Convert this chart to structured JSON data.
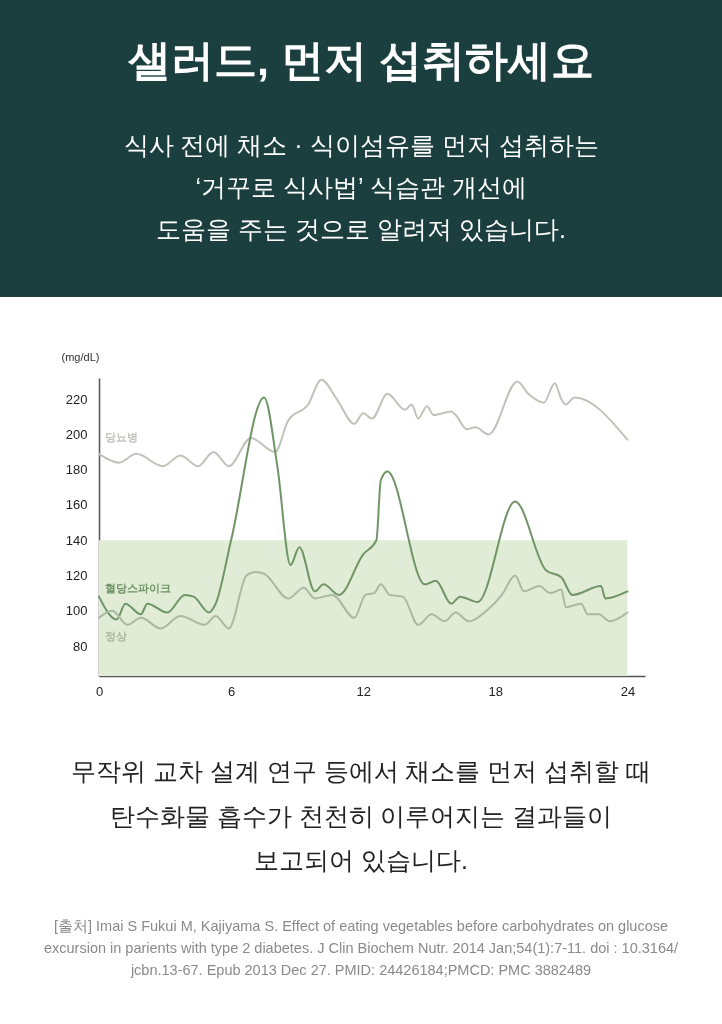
{
  "chart_data": {
    "type": "line",
    "title": "샐러드, 먼저 섭취하세요",
    "subtitle": "식사 전에 채소 · 식이섬유를 먼저 섭취하는\n‘거꾸로 식사법’ 식습관 개선에\n도움을 주는 것으로 알려져 있습니다.",
    "ylabel": "(mg/dL)",
    "xlim": [
      0,
      24.8
    ],
    "xticks": [
      0,
      6,
      12,
      18,
      24
    ],
    "ylim": [
      63,
      232
    ],
    "yticks": [
      80,
      100,
      120,
      140,
      160,
      180,
      200,
      220
    ],
    "grid": false,
    "legend": false,
    "bands": [
      {
        "axis": "y",
        "from": 63,
        "to": 140,
        "color": "#e0ecd6"
      }
    ],
    "series": [
      {
        "name": "당뇨병",
        "color": "#c2c2ba",
        "x": [
          0,
          0.9,
          1.7,
          2.9,
          3.7,
          4.5,
          5.2,
          5.9,
          6.9,
          8.0,
          8.6,
          9.5,
          10.1,
          10.8,
          11.6,
          12.0,
          12.4,
          13.1,
          13.9,
          14.2,
          14.5,
          14.9,
          15.2,
          16.0,
          16.2,
          16.7,
          17.1,
          17.7,
          19.0,
          19.5,
          20.2,
          20.7,
          21.0,
          21.2,
          21.6,
          24.0
        ],
        "values": [
          189,
          184,
          189,
          182,
          188,
          182,
          190,
          182,
          198,
          190,
          208,
          217,
          231,
          220,
          206,
          212,
          209,
          223,
          214,
          217,
          209,
          216,
          211,
          213,
          211,
          203,
          204,
          200,
          230,
          223,
          218,
          229,
          220,
          217,
          221,
          197
        ]
      },
      {
        "name": "혈당스파이크",
        "color": "#6f9566",
        "x": [
          0,
          0.8,
          1.2,
          1.9,
          2.2,
          3.1,
          3.9,
          4.3,
          5.0,
          5.3,
          6.0,
          7.5,
          8.1,
          8.7,
          9.1,
          9.8,
          10.2,
          10.9,
          12.0,
          12.6,
          12.8,
          13.1,
          14.8,
          15.3,
          16.0,
          16.4,
          17.2,
          18.9,
          20.3,
          21.0,
          21.5,
          22.8,
          23.0,
          24.0
        ],
        "values": [
          108,
          95,
          104,
          98,
          104,
          99,
          109,
          108,
          99,
          104,
          140,
          221,
          182,
          126,
          136,
          111,
          115,
          109,
          132,
          140,
          174,
          179,
          115,
          117,
          104,
          108,
          105,
          162,
          123,
          119,
          109,
          114,
          107,
          111
        ]
      },
      {
        "name": "정상",
        "color": "#aab9a2",
        "x": [
          0,
          0.6,
          1.3,
          1.9,
          2.8,
          3.7,
          4.8,
          5.3,
          5.9,
          6.7,
          7.1,
          7.5,
          8.6,
          9.3,
          9.8,
          10.6,
          11.6,
          12.1,
          12.5,
          12.8,
          13.2,
          13.8,
          14.5,
          15.1,
          15.7,
          16.2,
          16.8,
          17.6,
          18.3,
          18.9,
          19.3,
          20.0,
          20.5,
          21.0,
          21.2,
          21.9,
          22.2,
          22.7,
          23.2,
          24.0
        ],
        "values": [
          96,
          100,
          92,
          96,
          90,
          97,
          92,
          97,
          90,
          120,
          122,
          121,
          107,
          113,
          107,
          109,
          96,
          109,
          110,
          115,
          109,
          108,
          92,
          98,
          94,
          99,
          94,
          100,
          109,
          120,
          111,
          114,
          110,
          112,
          102,
          104,
          98,
          98,
          94,
          99
        ]
      }
    ],
    "annotations": [
      "무작위 교차 설계 연구 등에서 채소를 먼저 섭취할 때\n탄수화물 흡수가 천천히 이루어지는 결과들이\n보고되어 있습니다.",
      "[출처] Imai S Fukui M, Kajiyama S. Effect of eating vegetables before carbohydrates on glucose\nexcursion in parients with type 2 diabetes. J Clin Biochem Nutr. 2014 Jan;54(1):7-11. doi : 10.3164/\njcbn.13-67. Epub 2013 Dec 27. PMID: 24426184;PMCD: PMC 3882489"
    ]
  }
}
